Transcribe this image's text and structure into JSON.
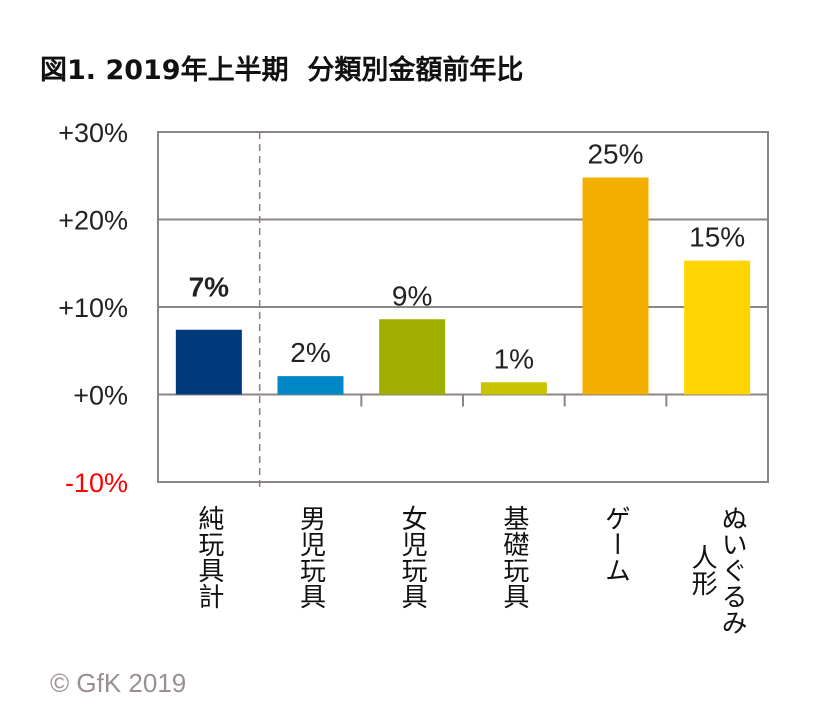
{
  "chart_data": {
    "type": "bar",
    "title": "図1. 2019年上半期  分類別金額前年比",
    "categories": [
      "純玩具計",
      "男児玩具",
      "女児玩具",
      "基礎玩具",
      "ゲーム",
      "ぬいぐるみ\n人形"
    ],
    "values": [
      7.4,
      2.1,
      8.6,
      1.4,
      24.8,
      15.3
    ],
    "data_labels": [
      "7%",
      "2%",
      "9%",
      "1%",
      "25%",
      "15%"
    ],
    "colors": [
      "#003a7d",
      "#0087c8",
      "#a0ae00",
      "#c8c400",
      "#f5af00",
      "#ffd400"
    ],
    "ylim": [
      -10,
      30
    ],
    "yticks": [
      30,
      20,
      10,
      0,
      -10
    ],
    "ytick_labels": [
      "+30%",
      "+20%",
      "+10%",
      "+0%",
      "-10%"
    ],
    "ytick_colors": [
      "#222222",
      "#222222",
      "#222222",
      "#222222",
      "#ff0000"
    ],
    "grid": true,
    "separator_after_first": true,
    "xlabel": "",
    "ylabel": ""
  },
  "copyright": "© GfK 2019"
}
